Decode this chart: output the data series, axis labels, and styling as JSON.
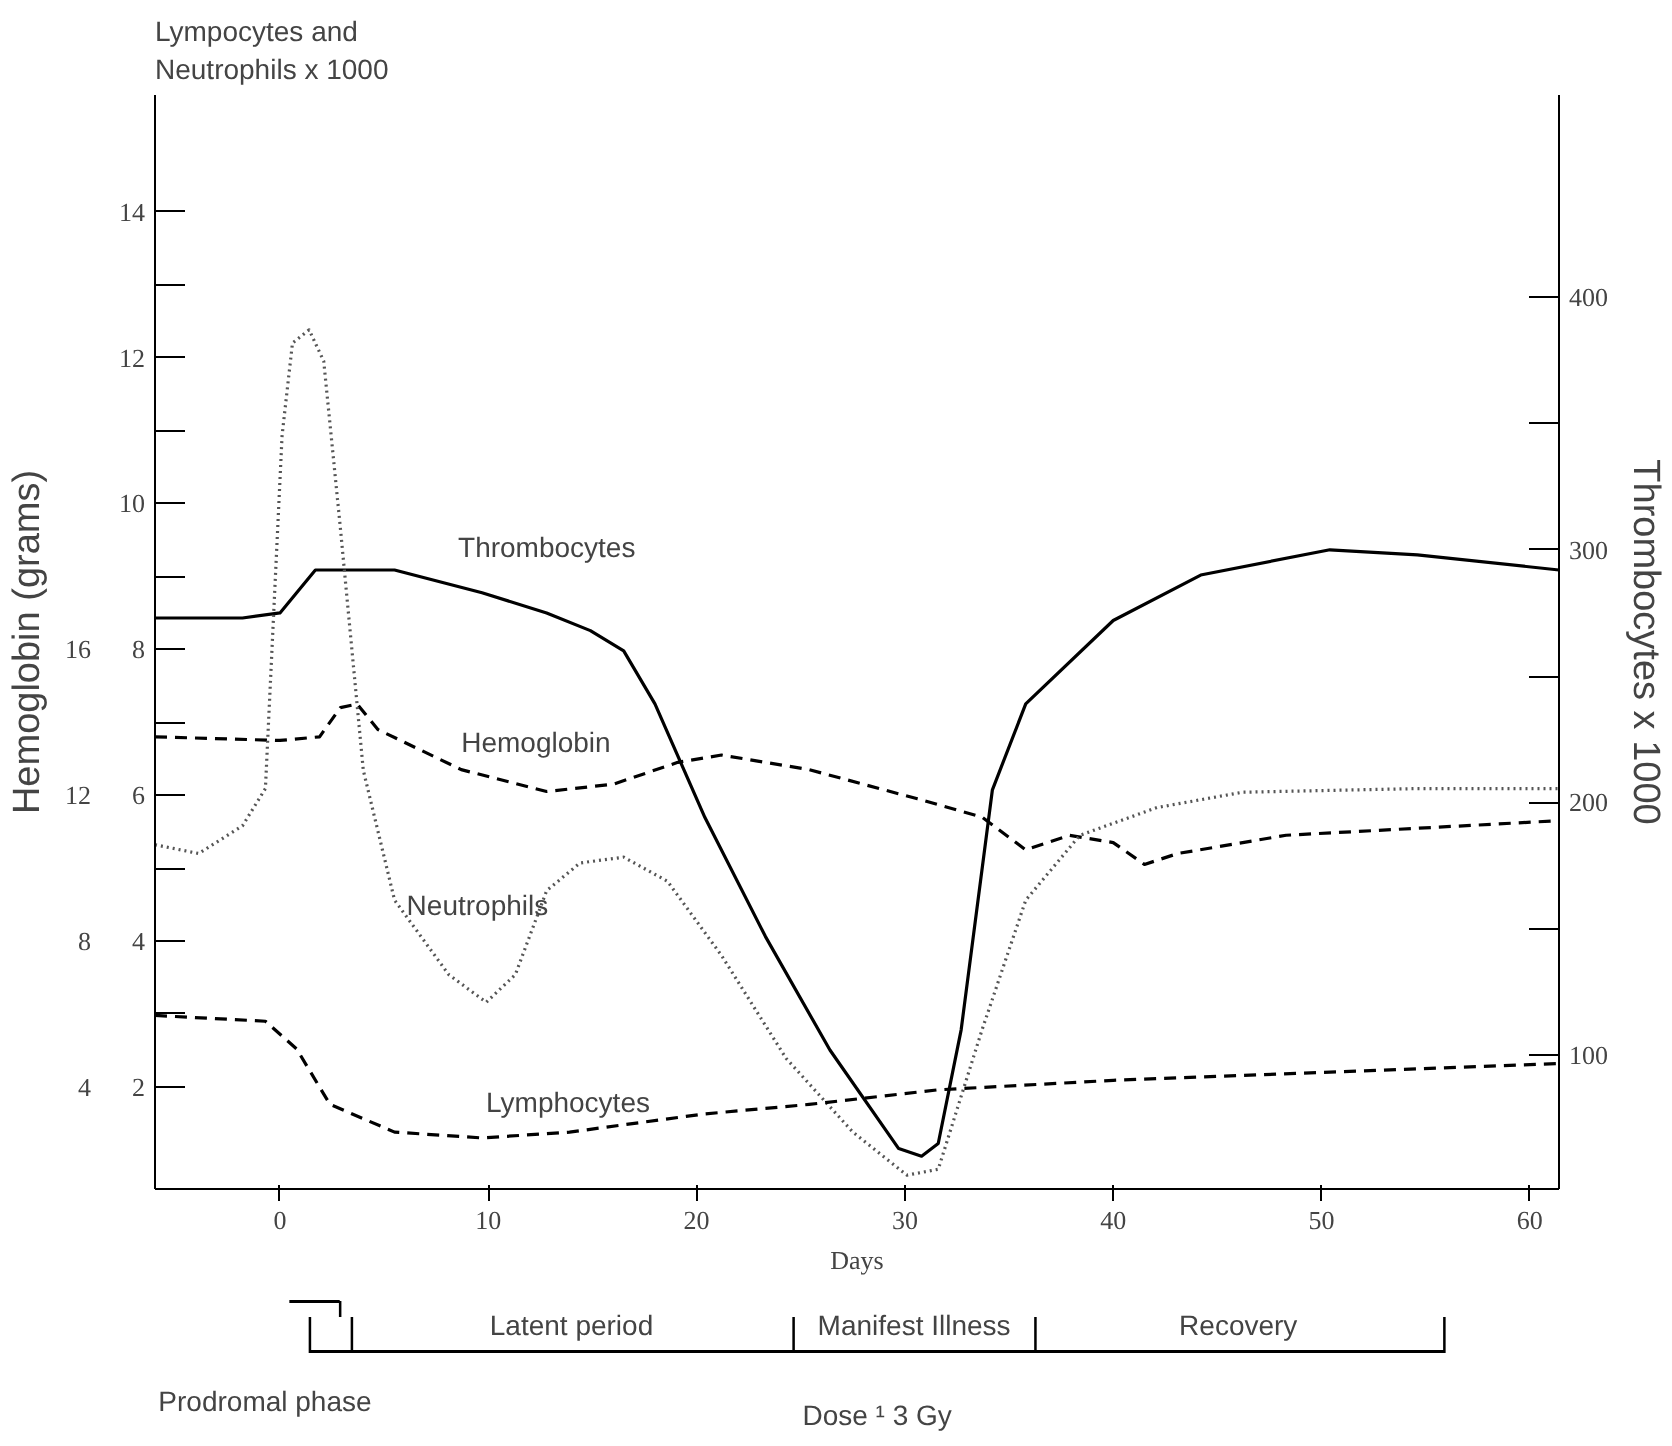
{
  "chart_data": {
    "type": "line",
    "ylabel": "Lympocytes and\nNeutrophils x 1000",
    "y2label": "Hemoglobin (grams)",
    "y3label": "Thrombocytes x 1000",
    "xlabel": "Days",
    "xlim": [
      -6,
      61.4
    ],
    "xticks": [
      0,
      10,
      20,
      30,
      40,
      50,
      60
    ],
    "ylim": [
      0.6,
      15.6
    ],
    "yticks": [
      2,
      4,
      6,
      8,
      10,
      12,
      14,
      {
        "value": 3,
        "label": null
      },
      {
        "value": 5,
        "label": null
      },
      {
        "value": 7,
        "label": null
      },
      {
        "value": 9,
        "label": null
      },
      {
        "value": 11,
        "label": null
      },
      {
        "value": 13,
        "label": null
      }
    ],
    "y2lim": [
      1.2,
      31.2
    ],
    "y2ticks": [
      4,
      8,
      12,
      16
    ],
    "y3lim": [
      47,
      480
    ],
    "y3ticks": [
      100,
      200,
      300,
      400,
      {
        "value": 150,
        "label": null
      },
      {
        "value": 250,
        "label": null
      },
      {
        "value": 350,
        "label": null
      }
    ],
    "grid": false,
    "marker": "none",
    "series": [
      {
        "name": "Thrombocytes",
        "color": "#000000",
        "axis": "y3",
        "line_style": "solid",
        "x": [
          -6,
          -1.8,
          0,
          0.8,
          1.7,
          3.5,
          5.5,
          9.7,
          12.8,
          14.9,
          16.5,
          18,
          20.4,
          23.3,
          26.4,
          29.7,
          30.8,
          31.6,
          32.7,
          34.2,
          35.8,
          40,
          44.2,
          50.4,
          54.6,
          61.4
        ],
        "values": [
          273,
          273,
          275,
          283,
          292,
          292,
          292,
          283,
          275,
          268,
          260,
          239,
          194,
          147,
          102,
          63,
          60,
          65,
          110,
          205,
          239,
          272,
          290,
          300,
          298,
          292
        ]
      },
      {
        "name": "Hemoglobin",
        "color": "#000000",
        "axis": "y2",
        "line_style": "dashed",
        "x": [
          -6,
          0,
          1.9,
          2.9,
          3.7,
          4.7,
          8.7,
          12.8,
          16,
          19.1,
          21.2,
          25.4,
          30.6,
          33.7,
          35.8,
          37.9,
          40,
          41.5,
          43.1,
          48.3,
          61.4
        ],
        "values": [
          13.6,
          13.5,
          13.6,
          14.4,
          14.5,
          13.8,
          12.7,
          12.1,
          12.3,
          12.9,
          13.1,
          12.7,
          11.9,
          11.4,
          10.5,
          10.9,
          10.7,
          10.1,
          10.4,
          10.9,
          11.3
        ]
      },
      {
        "name": "Neutrophils",
        "color": "#555555",
        "line_style": "dotted",
        "x": [
          -6,
          -3.9,
          -1.8,
          -0.7,
          0.1,
          0.6,
          1.4,
          2.1,
          2.9,
          4.0,
          5.5,
          8.1,
          9.9,
          11.3,
          12.8,
          14.4,
          16.5,
          18.6,
          21.2,
          24.3,
          27.5,
          30.1,
          31.6,
          33.7,
          35.8,
          38.4,
          42.1,
          46.2,
          54.6,
          61.4
        ],
        "values": [
          5.32,
          5.2,
          5.58,
          6.09,
          10.93,
          12.2,
          12.38,
          11.95,
          9.66,
          6.34,
          4.56,
          3.54,
          3.16,
          3.54,
          4.69,
          5.07,
          5.15,
          4.82,
          3.8,
          2.39,
          1.38,
          0.79,
          0.87,
          2.78,
          4.56,
          5.45,
          5.83,
          6.04,
          6.09,
          6.09
        ]
      },
      {
        "name": "Lymphocytes",
        "color": "#000000",
        "line_style": "dashed",
        "x": [
          -6,
          -0.7,
          0.8,
          2.4,
          5.5,
          9.7,
          13.9,
          20.4,
          25.4,
          31.6,
          40,
          61.4
        ],
        "values": [
          2.98,
          2.9,
          2.52,
          1.76,
          1.38,
          1.3,
          1.38,
          1.63,
          1.76,
          1.96,
          2.09,
          2.32
        ]
      }
    ],
    "annotations": [
      "Prodromal phase",
      "Latent period",
      "Manifest Illness",
      "Recovery",
      "Dose ¹ 3 Gy"
    ]
  }
}
